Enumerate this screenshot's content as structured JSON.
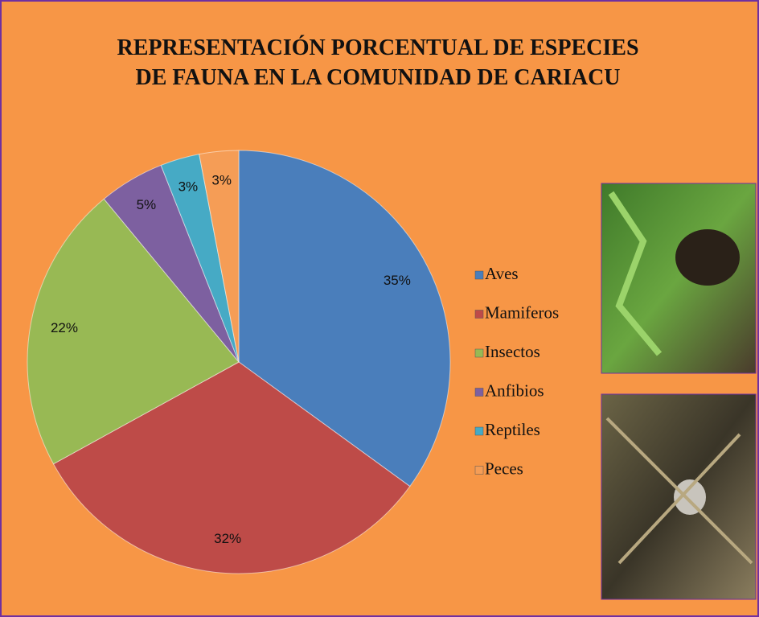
{
  "chart_data": {
    "type": "pie",
    "title": "REPRESENTACIÓN PORCENTUAL DE ESPECIES DE FAUNA EN LA COMUNIDAD DE CARIACU",
    "title_lines": [
      "REPRESENTACIÓN PORCENTUAL DE ESPECIES",
      "DE FAUNA EN LA COMUNIDAD DE CARIACU"
    ],
    "categories": [
      "Aves",
      "Mamiferos",
      "Insectos",
      "Anfibios",
      "Reptiles",
      "Peces"
    ],
    "values": [
      35,
      32,
      22,
      5,
      3,
      3
    ],
    "value_labels": [
      "35%",
      "32%",
      "22%",
      "5%",
      "3%",
      "3%"
    ],
    "colors": [
      "#4a7ebb",
      "#be4b48",
      "#98b954",
      "#7d60a0",
      "#46aac5",
      "#f59d56"
    ],
    "legend": "right"
  }
}
